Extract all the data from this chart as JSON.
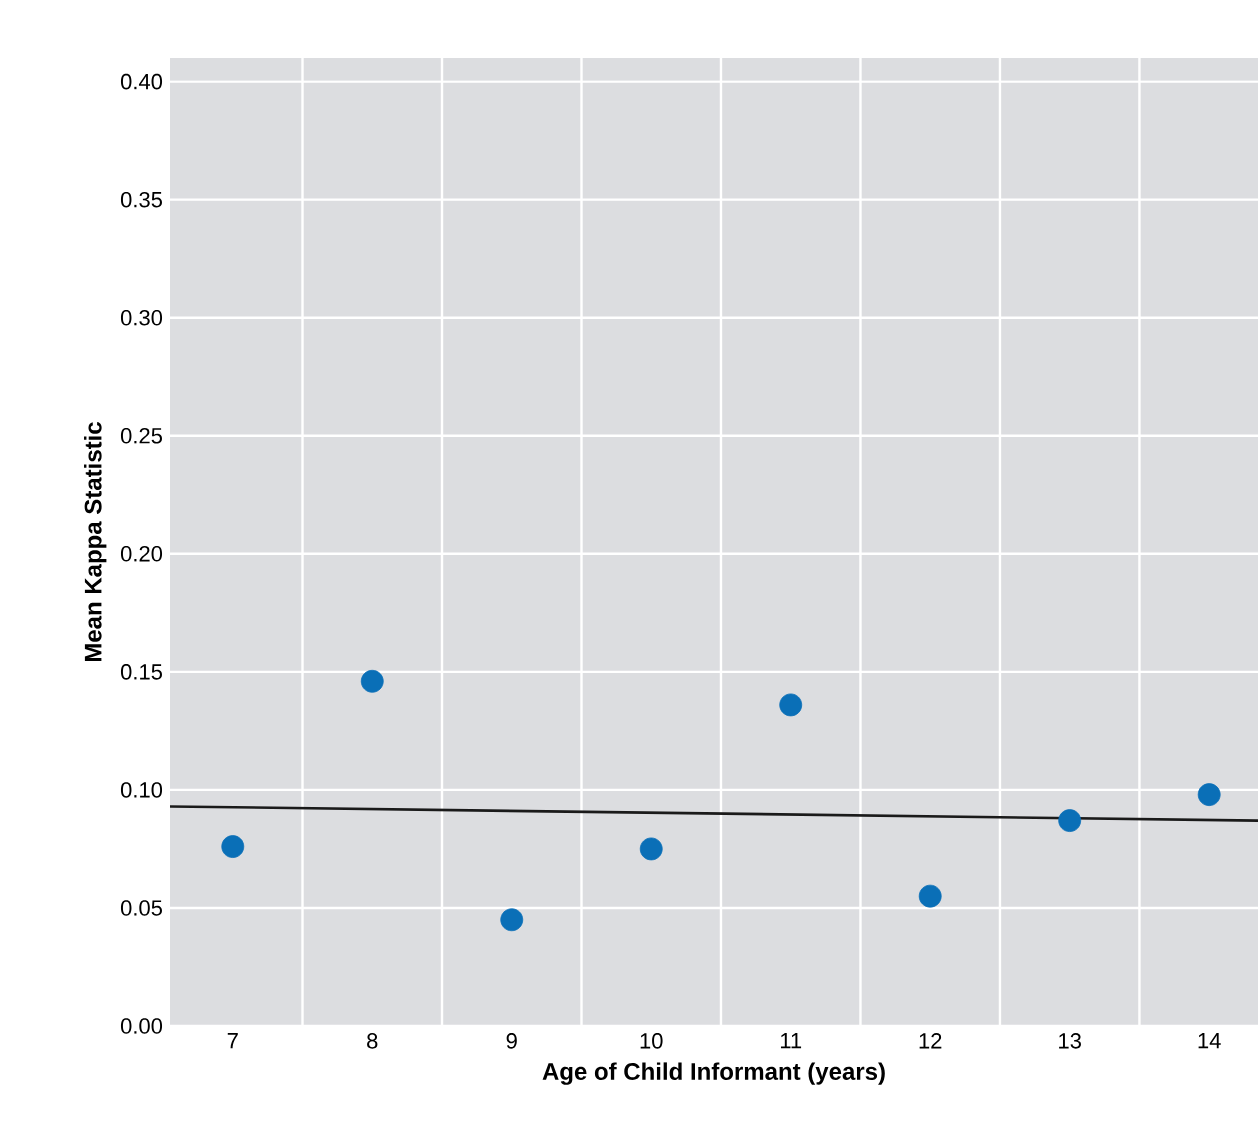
{
  "chart_data": {
    "type": "scatter",
    "xlabel": "Age of Child Informant (years)",
    "ylabel": "Mean Kappa Statistic",
    "xlim": [
      6.55,
      14.35
    ],
    "ylim": [
      0,
      0.41
    ],
    "xticks": [
      7,
      8,
      9,
      10,
      11,
      12,
      13,
      14,
      {
        "value": 7.5,
        "label": null
      },
      {
        "value": 8.5,
        "label": null
      },
      {
        "value": 9.5,
        "label": null
      },
      {
        "value": 10.5,
        "label": null
      },
      {
        "value": 11.5,
        "label": null
      },
      {
        "value": 12.5,
        "label": null
      },
      {
        "value": 13.5,
        "label": null
      }
    ],
    "yticks": [
      {
        "value": 0,
        "label": "0.00"
      },
      {
        "value": 0.05,
        "label": "0.05"
      },
      {
        "value": 0.1,
        "label": "0.10"
      },
      {
        "value": 0.15,
        "label": "0.15"
      },
      {
        "value": 0.2,
        "label": "0.20"
      },
      {
        "value": 0.25,
        "label": "0.25"
      },
      {
        "value": 0.3,
        "label": "0.30"
      },
      {
        "value": 0.35,
        "label": "0.35"
      },
      {
        "value": 0.4,
        "label": "0.40"
      }
    ],
    "grid": true,
    "series": [
      {
        "color": "#0a6fb7",
        "marker": "circle",
        "x": [
          7,
          8,
          9,
          10,
          11,
          12,
          13,
          14
        ],
        "values": [
          0.076,
          0.146,
          0.045,
          0.075,
          0.136,
          0.055,
          0.087,
          0.098
        ]
      },
      {
        "type": "line",
        "color": "#1a1a1a",
        "x": [
          6.55,
          14.35
        ],
        "values": [
          0.093,
          0.087
        ]
      }
    ]
  }
}
